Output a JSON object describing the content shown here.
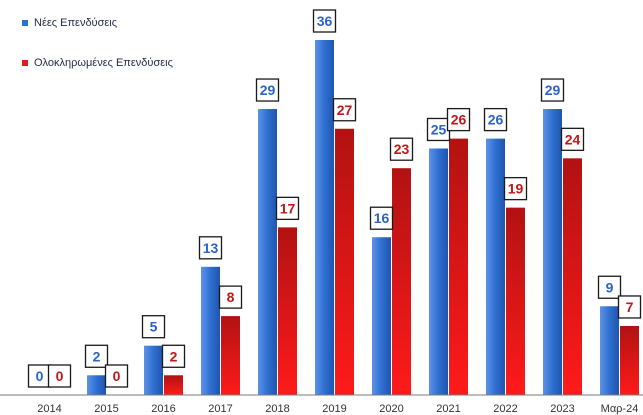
{
  "chart_data": {
    "type": "bar",
    "categories": [
      "2014",
      "2015",
      "2016",
      "2017",
      "2018",
      "2019",
      "2020",
      "2021",
      "2022",
      "2023",
      "Μαρ-24"
    ],
    "series": [
      {
        "name": "Νέες Επενδύσεις",
        "values": [
          0,
          2,
          5,
          13,
          29,
          36,
          16,
          25,
          26,
          29,
          9
        ],
        "color": "#2f6fd1"
      },
      {
        "name": "Ολοκληρωμένες Επενδύσεις",
        "values": [
          0,
          0,
          2,
          8,
          17,
          27,
          23,
          26,
          19,
          24,
          7
        ],
        "color": "#d82020"
      }
    ],
    "ylim": [
      0,
      36
    ],
    "grid": false,
    "legend": "top-left",
    "data_labels": true
  }
}
